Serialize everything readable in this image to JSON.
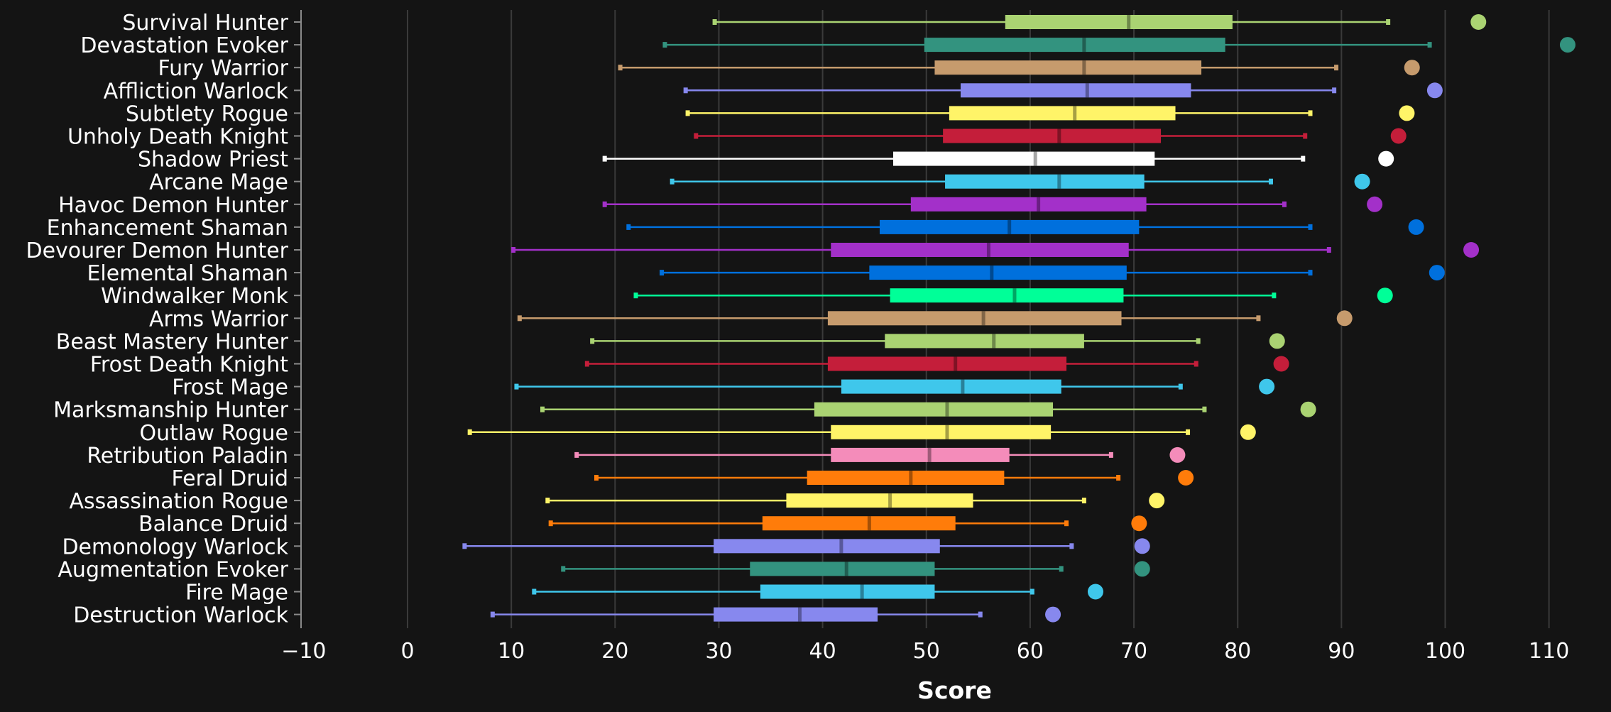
{
  "chart_data": {
    "type": "box",
    "xlabel": "Score",
    "xlim": [
      -10,
      115
    ],
    "xticks": [
      -10,
      0,
      10,
      20,
      30,
      40,
      50,
      60,
      70,
      80,
      90,
      100,
      110
    ],
    "grid": "vertical",
    "rows": [
      {
        "spec": "Survival Hunter",
        "color": "#AAD372",
        "whisker_low": 29.6,
        "q1": 57.6,
        "median": 69.5,
        "q3": 79.5,
        "whisker_high": 94.5,
        "max": 103.2
      },
      {
        "spec": "Devastation Evoker",
        "color": "#33937F",
        "whisker_low": 24.8,
        "q1": 49.8,
        "median": 65.2,
        "q3": 78.8,
        "whisker_high": 98.5,
        "max": 111.8
      },
      {
        "spec": "Fury Warrior",
        "color": "#C69B6D",
        "whisker_low": 20.5,
        "q1": 50.8,
        "median": 65.2,
        "q3": 76.5,
        "whisker_high": 89.5,
        "max": 96.8
      },
      {
        "spec": "Affliction Warlock",
        "color": "#8788EE",
        "whisker_low": 26.8,
        "q1": 53.3,
        "median": 65.5,
        "q3": 75.5,
        "whisker_high": 89.3,
        "max": 99.0
      },
      {
        "spec": "Subtlety Rogue",
        "color": "#FFF468",
        "whisker_low": 27.0,
        "q1": 52.2,
        "median": 64.3,
        "q3": 74.0,
        "whisker_high": 87.0,
        "max": 96.3
      },
      {
        "spec": "Unholy Death Knight",
        "color": "#C41E3A",
        "whisker_low": 27.8,
        "q1": 51.6,
        "median": 62.8,
        "q3": 72.6,
        "whisker_high": 86.5,
        "max": 95.5
      },
      {
        "spec": "Shadow Priest",
        "color": "#FFFFFF",
        "whisker_low": 19.0,
        "q1": 46.8,
        "median": 60.5,
        "q3": 72.0,
        "whisker_high": 86.3,
        "max": 94.3
      },
      {
        "spec": "Arcane Mage",
        "color": "#3FC7EB",
        "whisker_low": 25.5,
        "q1": 51.8,
        "median": 62.8,
        "q3": 71.0,
        "whisker_high": 83.2,
        "max": 92.0
      },
      {
        "spec": "Havoc Demon Hunter",
        "color": "#A330C9",
        "whisker_low": 19.0,
        "q1": 48.5,
        "median": 60.8,
        "q3": 71.2,
        "whisker_high": 84.5,
        "max": 93.2
      },
      {
        "spec": "Enhancement Shaman",
        "color": "#0070DD",
        "whisker_low": 21.3,
        "q1": 45.5,
        "median": 58.0,
        "q3": 70.5,
        "whisker_high": 87.0,
        "max": 97.2
      },
      {
        "spec": "Devourer Demon Hunter",
        "color": "#A330C9",
        "whisker_low": 10.2,
        "q1": 40.8,
        "median": 56.0,
        "q3": 69.5,
        "whisker_high": 88.8,
        "max": 102.5
      },
      {
        "spec": "Elemental Shaman",
        "color": "#0070DD",
        "whisker_low": 24.5,
        "q1": 44.5,
        "median": 56.3,
        "q3": 69.3,
        "whisker_high": 87.0,
        "max": 99.2
      },
      {
        "spec": "Windwalker Monk",
        "color": "#00FF98",
        "whisker_low": 22.0,
        "q1": 46.5,
        "median": 58.5,
        "q3": 69.0,
        "whisker_high": 83.5,
        "max": 94.2
      },
      {
        "spec": "Arms Warrior",
        "color": "#C69B6D",
        "whisker_low": 10.8,
        "q1": 40.5,
        "median": 55.5,
        "q3": 68.8,
        "whisker_high": 82.0,
        "max": 90.3
      },
      {
        "spec": "Beast Mastery Hunter",
        "color": "#AAD372",
        "whisker_low": 17.8,
        "q1": 46.0,
        "median": 56.5,
        "q3": 65.2,
        "whisker_high": 76.2,
        "max": 83.8
      },
      {
        "spec": "Frost Death Knight",
        "color": "#C41E3A",
        "whisker_low": 17.3,
        "q1": 40.5,
        "median": 52.8,
        "q3": 63.5,
        "whisker_high": 76.0,
        "max": 84.2
      },
      {
        "spec": "Frost Mage",
        "color": "#3FC7EB",
        "whisker_low": 10.5,
        "q1": 41.8,
        "median": 53.5,
        "q3": 63.0,
        "whisker_high": 74.5,
        "max": 82.8
      },
      {
        "spec": "Marksmanship Hunter",
        "color": "#AAD372",
        "whisker_low": 13.0,
        "q1": 39.2,
        "median": 52.0,
        "q3": 62.2,
        "whisker_high": 76.8,
        "max": 86.8
      },
      {
        "spec": "Outlaw Rogue",
        "color": "#FFF468",
        "whisker_low": 6.0,
        "q1": 40.8,
        "median": 52.0,
        "q3": 62.0,
        "whisker_high": 75.2,
        "max": 81.0
      },
      {
        "spec": "Retribution Paladin",
        "color": "#F48CBA",
        "whisker_low": 16.3,
        "q1": 40.8,
        "median": 50.3,
        "q3": 58.0,
        "whisker_high": 67.8,
        "max": 74.2
      },
      {
        "spec": "Feral Druid",
        "color": "#FF7C0A",
        "whisker_low": 18.2,
        "q1": 38.5,
        "median": 48.5,
        "q3": 57.5,
        "whisker_high": 68.5,
        "max": 75.0
      },
      {
        "spec": "Assassination Rogue",
        "color": "#FFF468",
        "whisker_low": 13.5,
        "q1": 36.5,
        "median": 46.5,
        "q3": 54.5,
        "whisker_high": 65.2,
        "max": 72.2
      },
      {
        "spec": "Balance Druid",
        "color": "#FF7C0A",
        "whisker_low": 13.8,
        "q1": 34.2,
        "median": 44.5,
        "q3": 52.8,
        "whisker_high": 63.5,
        "max": 70.5
      },
      {
        "spec": "Demonology Warlock",
        "color": "#8788EE",
        "whisker_low": 5.5,
        "q1": 29.5,
        "median": 41.8,
        "q3": 51.3,
        "whisker_high": 64.0,
        "max": 70.8
      },
      {
        "spec": "Augmentation Evoker",
        "color": "#33937F",
        "whisker_low": 15.0,
        "q1": 33.0,
        "median": 42.3,
        "q3": 50.8,
        "whisker_high": 63.0,
        "max": 70.8
      },
      {
        "spec": "Fire Mage",
        "color": "#3FC7EB",
        "whisker_low": 12.2,
        "q1": 34.0,
        "median": 43.8,
        "q3": 50.8,
        "whisker_high": 60.2,
        "max": 66.3
      },
      {
        "spec": "Destruction Warlock",
        "color": "#8788EE",
        "whisker_low": 8.2,
        "q1": 29.5,
        "median": 37.8,
        "q3": 45.3,
        "whisker_high": 55.2,
        "max": 62.2
      }
    ]
  }
}
